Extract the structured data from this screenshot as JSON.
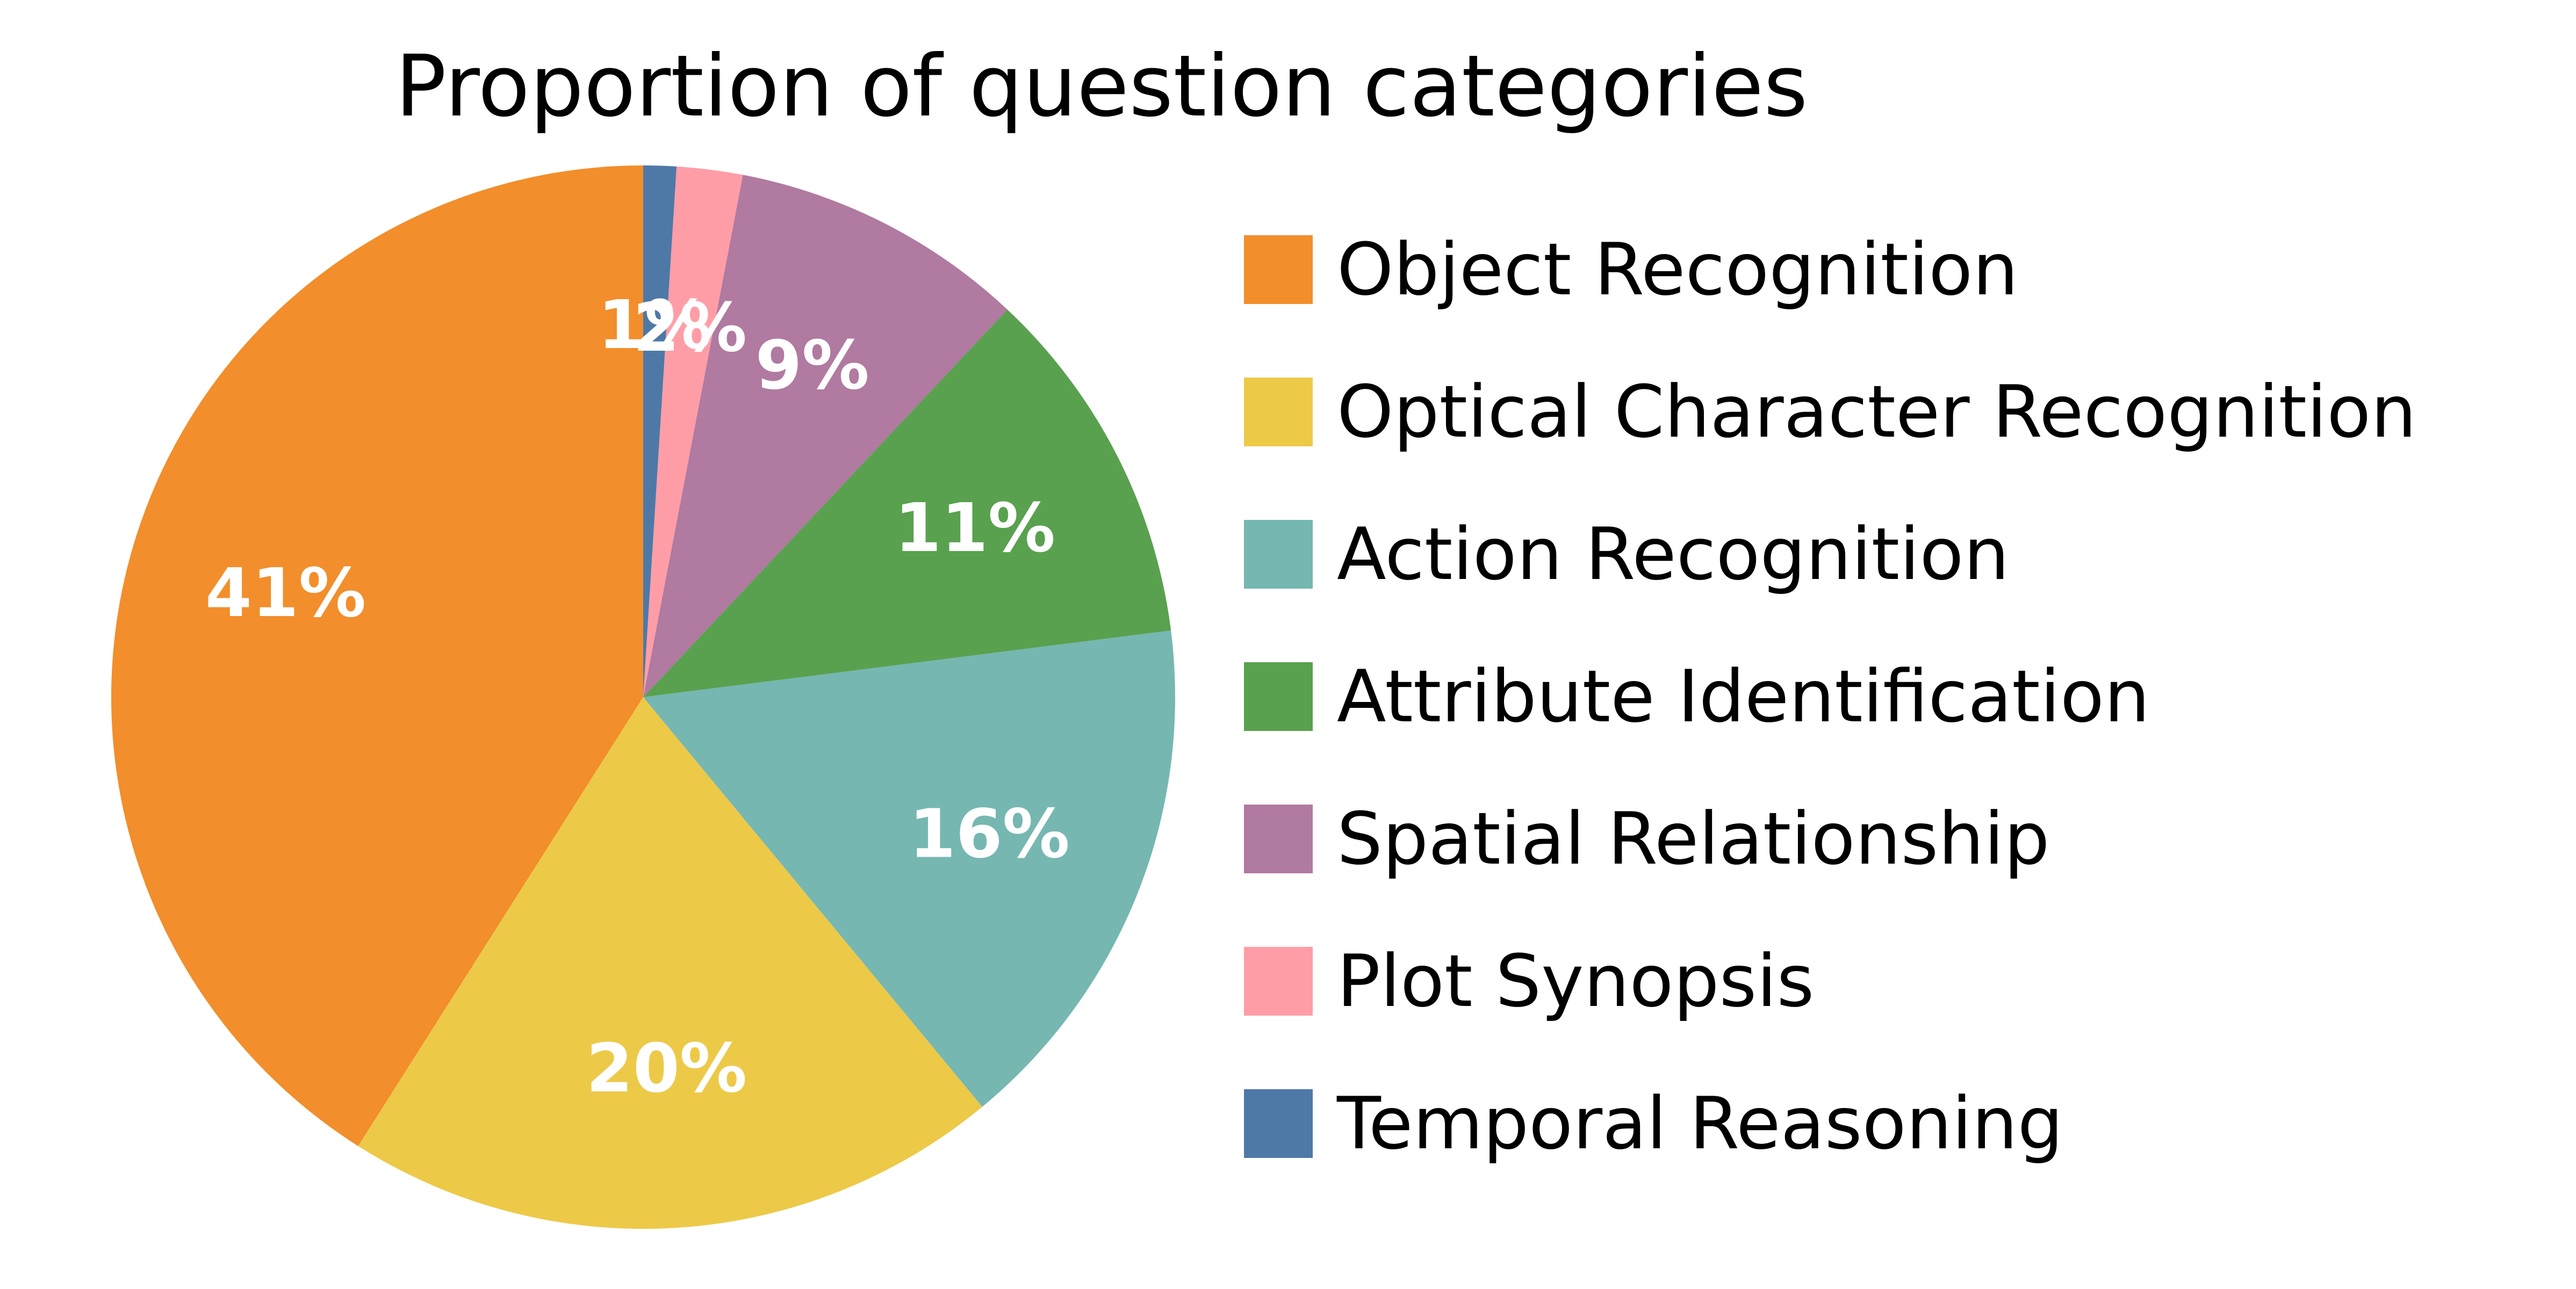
{
  "chart_data": {
    "type": "pie",
    "title": "Proportion of question categories",
    "slices": [
      {
        "label": "Object Recognition",
        "value": 41,
        "display": "41%",
        "color": "#F28E2B"
      },
      {
        "label": "Optical Character Recognition",
        "value": 20,
        "display": "20%",
        "color": "#EDC948"
      },
      {
        "label": "Action Recognition",
        "value": 16,
        "display": "16%",
        "color": "#76B7B2"
      },
      {
        "label": "Attribute Identification",
        "value": 11,
        "display": "11%",
        "color": "#59A14F"
      },
      {
        "label": "Spatial Relationship",
        "value": 9,
        "display": "9%",
        "color": "#B07AA1"
      },
      {
        "label": "Plot Synopsis",
        "value": 2,
        "display": "2%",
        "color": "#FF9DA7"
      },
      {
        "label": "Temporal Reasoning",
        "value": 1,
        "display": "1%",
        "color": "#4E79A7"
      }
    ],
    "legend_placement": "right"
  }
}
